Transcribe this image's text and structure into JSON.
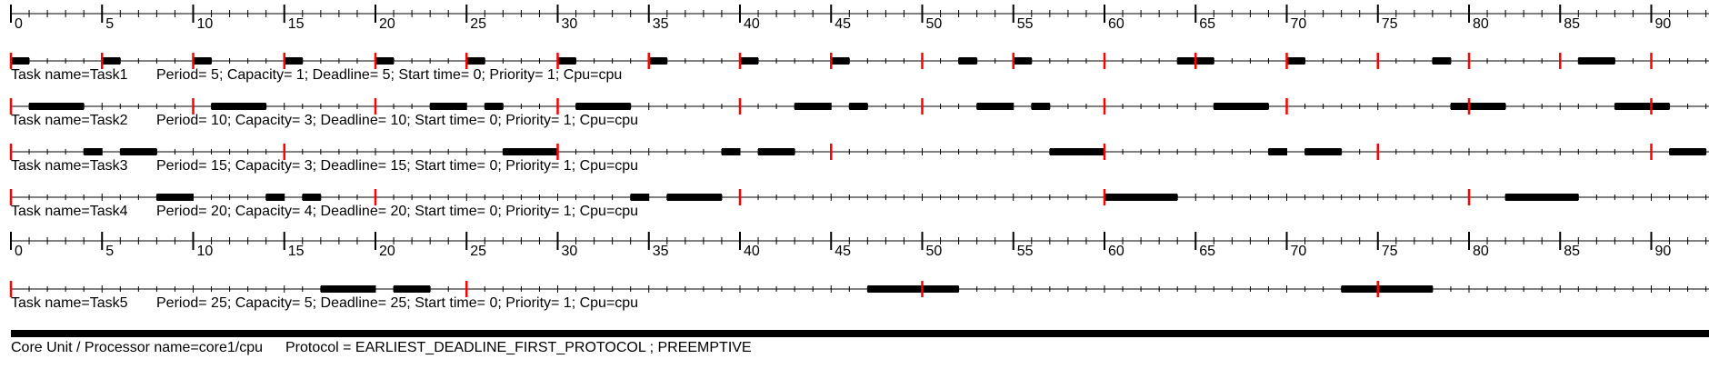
{
  "chart_data": {
    "type": "gantt",
    "time_axis": {
      "min": 0,
      "max": 93,
      "major_every": 5,
      "minor_every": 1,
      "tick_labels": [
        "0",
        "5",
        "10",
        "15",
        "20",
        "25",
        "30",
        "35",
        "40",
        "45",
        "50",
        "55",
        "60",
        "65",
        "70",
        "75",
        "80",
        "85",
        "90"
      ]
    },
    "colors": {
      "execution": "#000000",
      "release": "#ff0000",
      "axis": "#000000"
    },
    "tasks": [
      {
        "label": "Task name=Task1",
        "params": "Period= 5; Capacity= 1; Deadline= 5; Start time= 0; Priority= 1; Cpu=cpu",
        "releases": [
          0,
          5,
          10,
          15,
          20,
          25,
          30,
          35,
          40,
          45,
          50,
          55,
          60,
          65,
          70,
          75,
          80,
          85,
          90
        ],
        "executions": [
          [
            0,
            1
          ],
          [
            5,
            6
          ],
          [
            10,
            11
          ],
          [
            15,
            16
          ],
          [
            20,
            21
          ],
          [
            25,
            26
          ],
          [
            30,
            31
          ],
          [
            35,
            36
          ],
          [
            40,
            41
          ],
          [
            45,
            46
          ],
          [
            52,
            53
          ],
          [
            55,
            56
          ],
          [
            64,
            66
          ],
          [
            70,
            71
          ],
          [
            78,
            79
          ],
          [
            86,
            88
          ]
        ]
      },
      {
        "label": "Task name=Task2",
        "params": "Period= 10; Capacity= 3; Deadline= 10; Start time= 0; Priority= 1; Cpu=cpu",
        "releases": [
          0,
          10,
          20,
          30,
          40,
          50,
          60,
          70,
          80,
          90
        ],
        "executions": [
          [
            1,
            4
          ],
          [
            11,
            14
          ],
          [
            23,
            25
          ],
          [
            26,
            27
          ],
          [
            31,
            34
          ],
          [
            43,
            45
          ],
          [
            46,
            47
          ],
          [
            53,
            55
          ],
          [
            56,
            57
          ],
          [
            66,
            69
          ],
          [
            79,
            82
          ],
          [
            88,
            91
          ]
        ]
      },
      {
        "label": "Task name=Task3",
        "params": "Period= 15; Capacity= 3; Deadline= 15; Start time= 0; Priority= 1; Cpu=cpu",
        "releases": [
          0,
          15,
          30,
          45,
          60,
          75,
          90
        ],
        "executions": [
          [
            4,
            5
          ],
          [
            6,
            8
          ],
          [
            27,
            30
          ],
          [
            39,
            40
          ],
          [
            41,
            43
          ],
          [
            57,
            60
          ],
          [
            69,
            70
          ],
          [
            71,
            73
          ],
          [
            91,
            93
          ]
        ]
      },
      {
        "label": "Task name=Task4",
        "params": "Period= 20; Capacity= 4; Deadline= 20; Start time= 0; Priority= 1; Cpu=cpu",
        "releases": [
          0,
          20,
          40,
          60,
          80
        ],
        "executions": [
          [
            8,
            10
          ],
          [
            14,
            15
          ],
          [
            16,
            17
          ],
          [
            34,
            35
          ],
          [
            36,
            39
          ],
          [
            60,
            64
          ],
          [
            82,
            86
          ]
        ]
      },
      {
        "label": "Task name=Task5",
        "params": "Period= 25; Capacity= 5; Deadline= 25; Start time= 0; Priority= 1; Cpu=cpu",
        "releases": [
          0,
          25,
          50,
          75
        ],
        "executions": [
          [
            17,
            20
          ],
          [
            21,
            23
          ],
          [
            47,
            52
          ],
          [
            73,
            78
          ]
        ]
      }
    ],
    "footer": {
      "unit": "Core Unit / Processor name=core1/cpu",
      "protocol": "Protocol = EARLIEST_DEADLINE_FIRST_PROTOCOL ; PREEMPTIVE"
    }
  }
}
